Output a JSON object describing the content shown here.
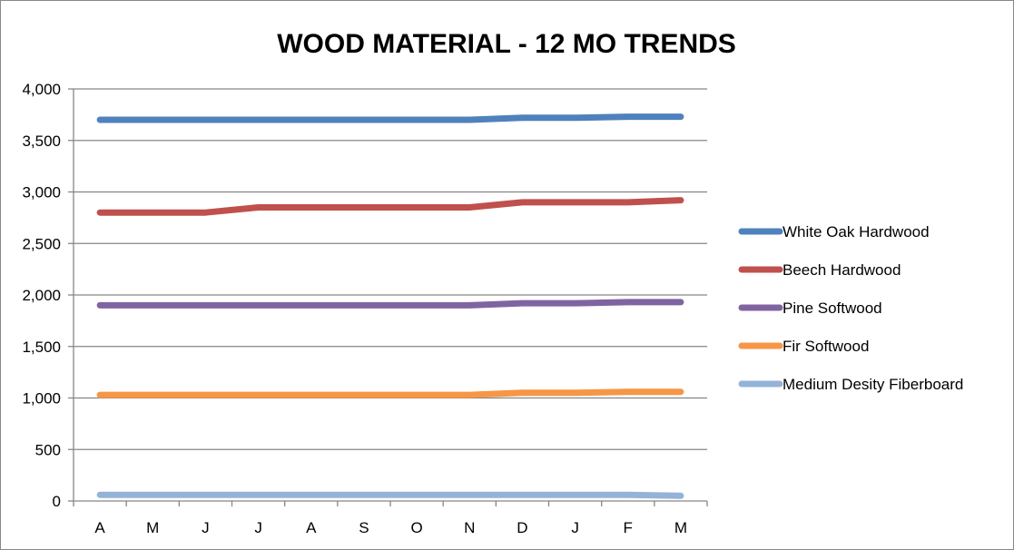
{
  "chart_data": {
    "type": "line",
    "title": "WOOD MATERIAL - 12 MO TRENDS",
    "xlabel": "",
    "ylabel": "",
    "categories": [
      "A",
      "M",
      "J",
      "J",
      "A",
      "S",
      "O",
      "N",
      "D",
      "J",
      "F",
      "M"
    ],
    "ylim": [
      0,
      4000
    ],
    "yticks": [
      0,
      500,
      1000,
      1500,
      2000,
      2500,
      3000,
      3500,
      4000
    ],
    "ytick_labels": [
      "0",
      "500",
      "1,000",
      "1,500",
      "2,000",
      "2,500",
      "3,000",
      "3,500",
      "4,000"
    ],
    "grid": "horizontal",
    "legend_position": "right",
    "series": [
      {
        "name": "White Oak Hardwood",
        "color": "#4F81BD",
        "values": [
          3700,
          3700,
          3700,
          3700,
          3700,
          3700,
          3700,
          3700,
          3720,
          3720,
          3730,
          3730
        ]
      },
      {
        "name": "Beech Hardwood",
        "color": "#C0504D",
        "values": [
          2800,
          2800,
          2800,
          2850,
          2850,
          2850,
          2850,
          2850,
          2900,
          2900,
          2900,
          2920
        ]
      },
      {
        "name": "Pine Softwood",
        "color": "#8064A2",
        "values": [
          1900,
          1900,
          1900,
          1900,
          1900,
          1900,
          1900,
          1900,
          1920,
          1920,
          1930,
          1930
        ]
      },
      {
        "name": "Fir Softwood",
        "color": "#F79646",
        "values": [
          1030,
          1030,
          1030,
          1030,
          1030,
          1030,
          1030,
          1030,
          1050,
          1050,
          1060,
          1060
        ]
      },
      {
        "name": "Medium Desity Fiberboard",
        "color": "#95B3D7",
        "values": [
          60,
          60,
          60,
          60,
          60,
          60,
          60,
          60,
          60,
          60,
          60,
          50
        ]
      }
    ]
  }
}
